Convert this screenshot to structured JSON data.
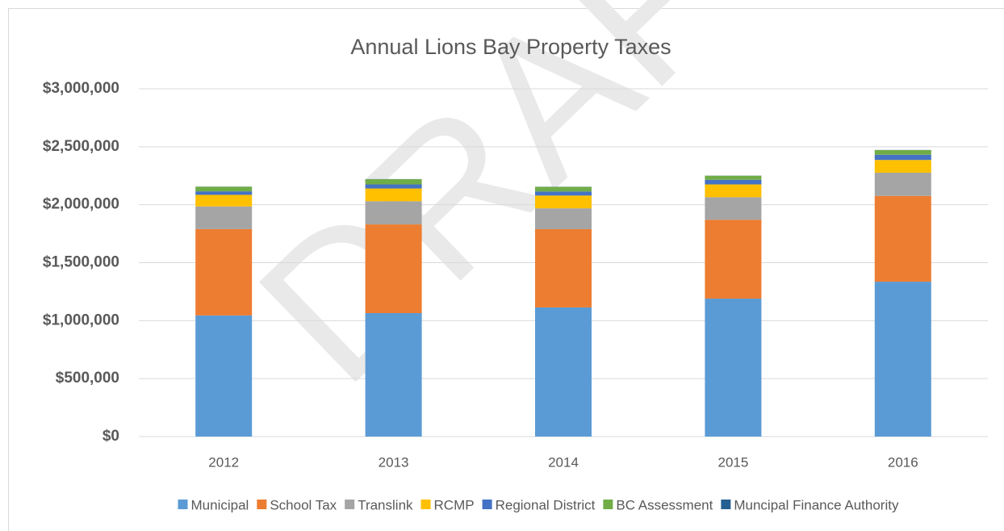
{
  "chart_data": {
    "type": "stacked_bar",
    "title": "Annual Lions Bay Property Taxes",
    "watermark": "DRAFT",
    "categories": [
      "2012",
      "2013",
      "2014",
      "2015",
      "2016"
    ],
    "series": [
      {
        "name": "Municipal",
        "color": "#5b9bd5",
        "values": [
          1045000,
          1065000,
          1114000,
          1190000,
          1336000
        ]
      },
      {
        "name": "School Tax",
        "color": "#ed7d31",
        "values": [
          745000,
          765000,
          675000,
          680000,
          740000
        ]
      },
      {
        "name": "Translink",
        "color": "#a5a5a5",
        "values": [
          195000,
          200000,
          180000,
          195000,
          200000
        ]
      },
      {
        "name": "RCMP",
        "color": "#ffc000",
        "values": [
          100000,
          110000,
          110000,
          110000,
          110000
        ]
      },
      {
        "name": "Regional District",
        "color": "#4472c4",
        "values": [
          30000,
          35000,
          35000,
          40000,
          45000
        ]
      },
      {
        "name": "BC Assessment",
        "color": "#70ad47",
        "values": [
          40000,
          45000,
          40000,
          35000,
          40000
        ]
      },
      {
        "name": "Muncipal Finance Authority",
        "color": "#255e91",
        "values": [
          1000,
          1000,
          1000,
          1000,
          1000
        ]
      }
    ],
    "ylim": [
      0,
      3000000
    ],
    "yticks": [
      {
        "value": 0,
        "label": "$0"
      },
      {
        "value": 500000,
        "label": "$500,000"
      },
      {
        "value": 1000000,
        "label": "$1,000,000"
      },
      {
        "value": 1500000,
        "label": "$1,500,000"
      },
      {
        "value": 2000000,
        "label": "$2,000,000"
      },
      {
        "value": 2500000,
        "label": "$2,500,000"
      },
      {
        "value": 3000000,
        "label": "$3,000,000"
      }
    ],
    "grid": true,
    "legend": "bottom"
  }
}
